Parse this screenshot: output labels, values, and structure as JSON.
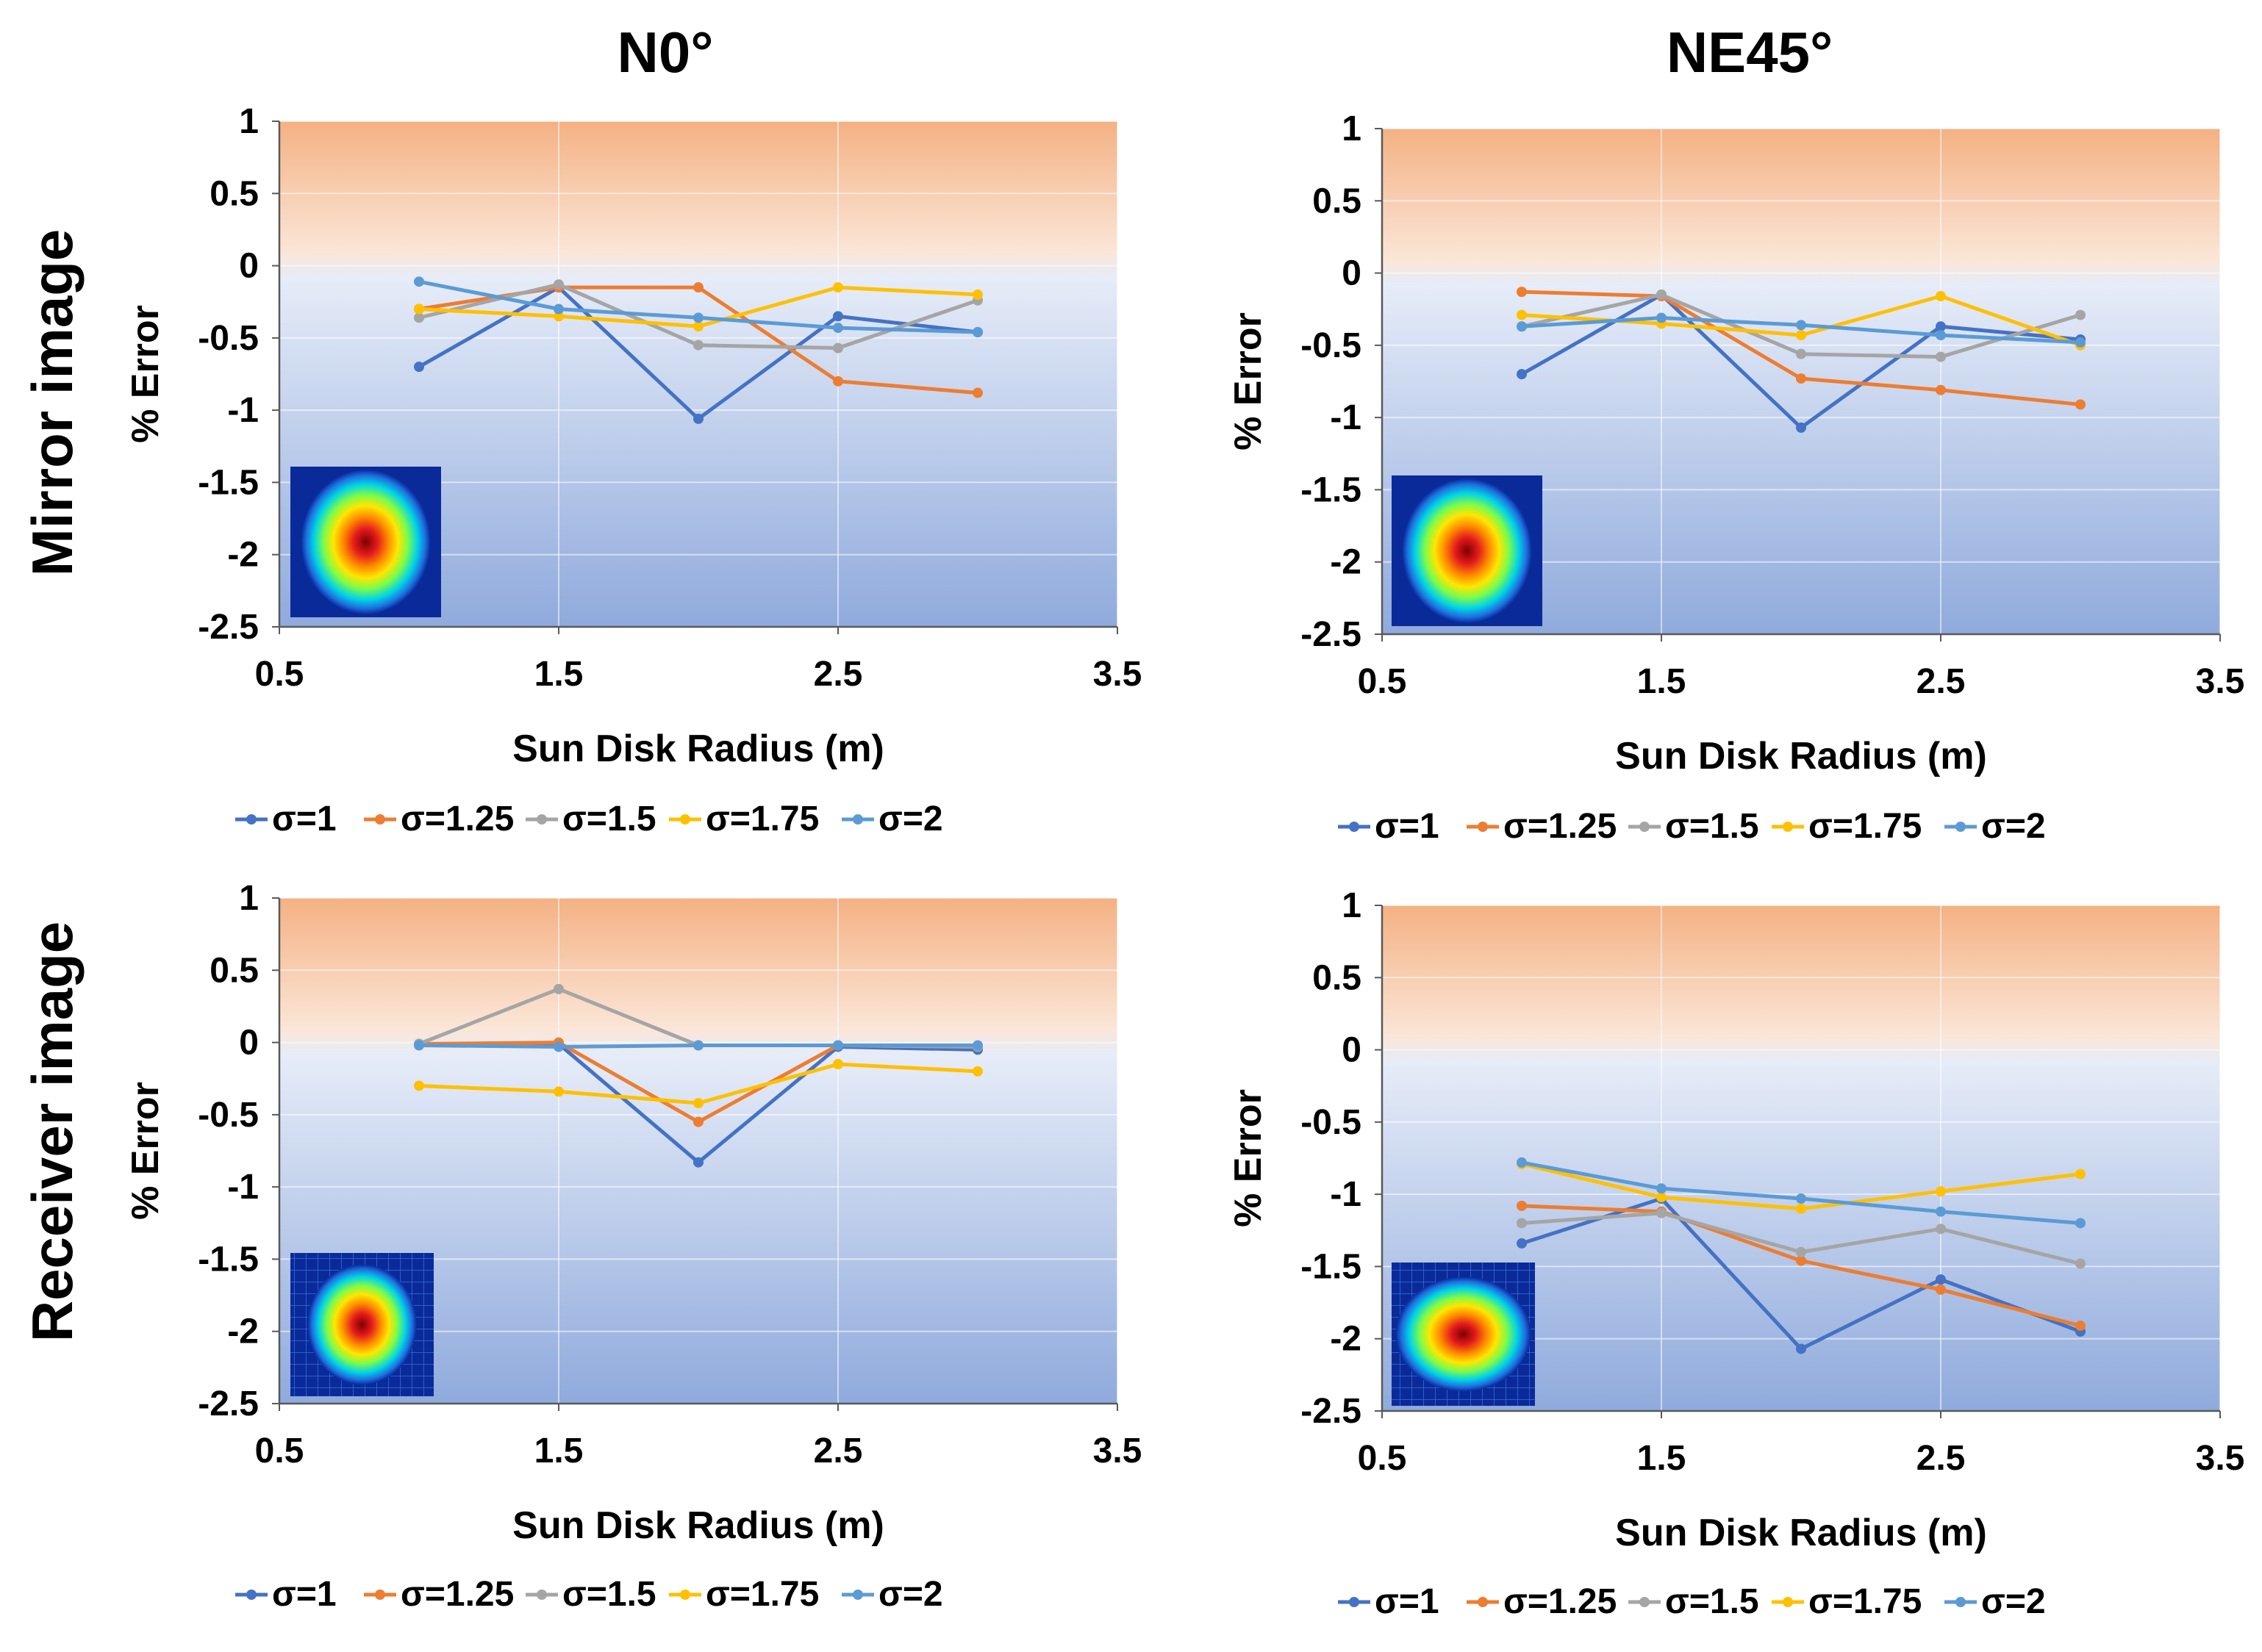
{
  "column_titles": [
    "N0°",
    "NE45°"
  ],
  "row_titles": [
    "Mirror image",
    "Receiver image"
  ],
  "series_colors": [
    "#4472C4",
    "#ED7D31",
    "#A5A5A5",
    "#FFC000",
    "#5B9BD5"
  ],
  "chart_data": [
    {
      "type": "line",
      "panel": "Mirror image / N0°",
      "xlabel": "Sun Disk Radius (m)",
      "ylabel": "% Error",
      "xlim": [
        0.5,
        3.5
      ],
      "ylim": [
        -2.5,
        1
      ],
      "xticks": [
        "0.5",
        "1.5",
        "2.5",
        "3.5"
      ],
      "yticks": [
        "1",
        "0.5",
        "0",
        "-0.5",
        "-1",
        "-1.5",
        "-2",
        "-2.5"
      ],
      "x": [
        1,
        1.5,
        2,
        2.5,
        3
      ],
      "legend_position": "bottom",
      "series": [
        {
          "name": "σ=1",
          "values": [
            -0.7,
            -0.15,
            -1.06,
            -0.35,
            -0.46
          ]
        },
        {
          "name": "σ=1.25",
          "values": [
            -0.3,
            -0.15,
            -0.15,
            -0.8,
            -0.88
          ]
        },
        {
          "name": "σ=1.5",
          "values": [
            -0.36,
            -0.13,
            -0.55,
            -0.57,
            -0.24
          ]
        },
        {
          "name": "σ=1.75",
          "values": [
            -0.3,
            -0.35,
            -0.42,
            -0.15,
            -0.2
          ]
        },
        {
          "name": "σ=2",
          "values": [
            -0.11,
            -0.3,
            -0.36,
            -0.43,
            -0.46
          ]
        }
      ]
    },
    {
      "type": "line",
      "panel": "Mirror image / NE45°",
      "xlabel": "Sun Disk Radius (m)",
      "ylabel": "% Error",
      "xlim": [
        0.5,
        3.5
      ],
      "ylim": [
        -2.5,
        1
      ],
      "xticks": [
        "0.5",
        "1.5",
        "2.5",
        "3.5"
      ],
      "yticks": [
        "1",
        "0.5",
        "0",
        "-0.5",
        "-1",
        "-1.5",
        "-2",
        "-2.5"
      ],
      "x": [
        1,
        1.5,
        2,
        2.5,
        3
      ],
      "legend_position": "bottom",
      "series": [
        {
          "name": "σ=1",
          "values": [
            -0.7,
            -0.15,
            -1.07,
            -0.37,
            -0.46
          ]
        },
        {
          "name": "σ=1.25",
          "values": [
            -0.13,
            -0.16,
            -0.73,
            -0.81,
            -0.91
          ]
        },
        {
          "name": "σ=1.5",
          "values": [
            -0.37,
            -0.15,
            -0.56,
            -0.58,
            -0.29
          ]
        },
        {
          "name": "σ=1.75",
          "values": [
            -0.29,
            -0.35,
            -0.43,
            -0.16,
            -0.5
          ]
        },
        {
          "name": "σ=2",
          "values": [
            -0.37,
            -0.31,
            -0.36,
            -0.43,
            -0.48
          ]
        }
      ]
    },
    {
      "type": "line",
      "panel": "Receiver image / N0°",
      "xlabel": "Sun Disk Radius (m)",
      "ylabel": "% Error",
      "xlim": [
        0.5,
        3.5
      ],
      "ylim": [
        -2.5,
        1
      ],
      "xticks": [
        "0.5",
        "1.5",
        "2.5",
        "3.5"
      ],
      "yticks": [
        "1",
        "0.5",
        "0",
        "-0.5",
        "-1",
        "-1.5",
        "-2",
        "-2.5"
      ],
      "x": [
        1,
        1.5,
        2,
        2.5,
        3
      ],
      "legend_position": "bottom",
      "series": [
        {
          "name": "σ=1",
          "values": [
            -0.01,
            -0.01,
            -0.83,
            -0.03,
            -0.05
          ]
        },
        {
          "name": "σ=1.25",
          "values": [
            -0.01,
            0.0,
            -0.55,
            -0.02,
            -0.03
          ]
        },
        {
          "name": "σ=1.5",
          "values": [
            -0.01,
            0.37,
            -0.02,
            -0.02,
            -0.03
          ]
        },
        {
          "name": "σ=1.75",
          "values": [
            -0.3,
            -0.34,
            -0.42,
            -0.15,
            -0.2
          ]
        },
        {
          "name": "σ=2",
          "values": [
            -0.02,
            -0.03,
            -0.02,
            -0.02,
            -0.02
          ]
        }
      ]
    },
    {
      "type": "line",
      "panel": "Receiver image / NE45°",
      "xlabel": "Sun Disk Radius (m)",
      "ylabel": "% Error",
      "xlim": [
        0.5,
        3.5
      ],
      "ylim": [
        -2.5,
        1
      ],
      "xticks": [
        "0.5",
        "1.5",
        "2.5",
        "3.5"
      ],
      "yticks": [
        "1",
        "0.5",
        "0",
        "-0.5",
        "-1",
        "-1.5",
        "-2",
        "-2.5"
      ],
      "x": [
        1,
        1.5,
        2,
        2.5,
        3
      ],
      "legend_position": "bottom",
      "series": [
        {
          "name": "σ=1",
          "values": [
            -1.34,
            -1.03,
            -2.07,
            -1.59,
            -1.95
          ]
        },
        {
          "name": "σ=1.25",
          "values": [
            -1.08,
            -1.12,
            -1.46,
            -1.66,
            -1.91
          ]
        },
        {
          "name": "σ=1.5",
          "values": [
            -1.2,
            -1.13,
            -1.4,
            -1.24,
            -1.48
          ]
        },
        {
          "name": "σ=1.75",
          "values": [
            -0.79,
            -1.02,
            -1.1,
            -0.98,
            -0.86
          ]
        },
        {
          "name": "σ=2",
          "values": [
            -0.78,
            -0.96,
            -1.03,
            -1.12,
            -1.2
          ]
        }
      ]
    }
  ]
}
